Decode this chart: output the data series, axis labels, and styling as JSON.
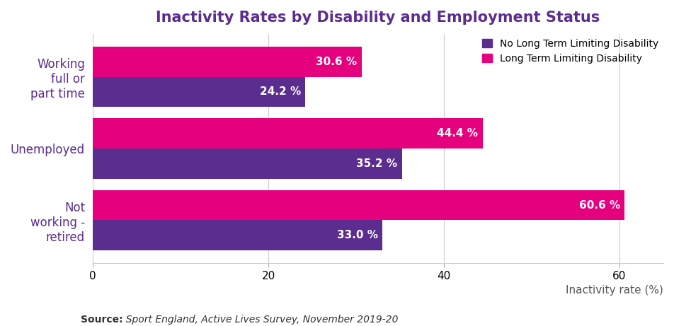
{
  "title": "Inactivity Rates by Disability and Employment Status",
  "categories": [
    "Working\nfull or\npart time",
    "Unemployed",
    "Not\nworking -\nretired"
  ],
  "ltld_values": [
    30.6,
    44.4,
    60.6
  ],
  "nltld_values": [
    24.2,
    35.2,
    33.0
  ],
  "ltld_color": "#E5007D",
  "nltld_color": "#5B2D8E",
  "ltld_label": "Long Term Limiting Disability",
  "nltld_label": "No Long Term Limiting Disability",
  "xlabel": "Inactivity rate (%)",
  "xlim": [
    0,
    65
  ],
  "xticks": [
    0,
    20,
    40,
    60
  ],
  "bar_height": 0.42,
  "title_color": "#5B2D8E",
  "label_fontsize": 11,
  "title_fontsize": 15,
  "source_bold": "Source:",
  "source_detail": "  Sport England, Active Lives Survey, November 2019-20",
  "background_color": "#ffffff",
  "label_color_inside": "#ffffff",
  "ytick_color": "#5B2D8E",
  "ytick_fontsize": 12
}
